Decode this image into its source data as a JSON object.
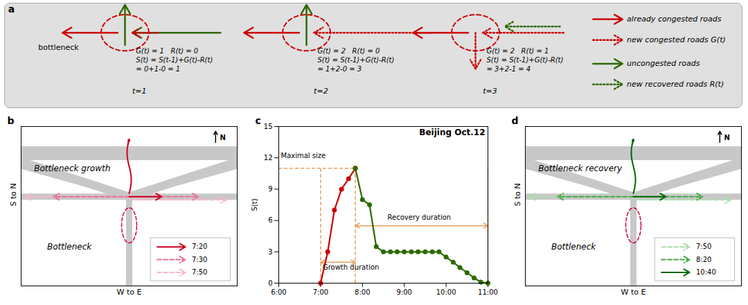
{
  "chart_data": [
    {
      "type": "diagram",
      "annotations": [
        "a",
        "bottleneck"
      ],
      "background": "#e0e0e0",
      "ellipse_color": "#cc0000",
      "steps": [
        {
          "label": "t=1",
          "text_lines": [
            "G(t) = 1   R(t) = 0",
            "S(t) = S(t-1)+G(t)-R(t)",
            "= 0+1-0 = 1"
          ]
        },
        {
          "label": "t=2",
          "text_lines": [
            "G(t) = 2   R(t) = 0",
            "S(t) = S(t-1)+G(t)-R(t)",
            "= 1+2-0 = 3"
          ]
        },
        {
          "label": "t=3",
          "text_lines": [
            "G(t) = 2   R(t) = 1",
            "S(t) = S(t-1)+G(t)-R(t)",
            "= 3+2-1 = 4"
          ]
        }
      ],
      "series": [
        {
          "name": "already congested roads",
          "color": "#cc0000",
          "line_style": "solid"
        },
        {
          "name": "new congested roads G(t)",
          "color": "#cc0000",
          "line_style": "dotted"
        },
        {
          "name": "uncongested roads",
          "color": "#2d6a00",
          "line_style": "solid"
        },
        {
          "name": "new recovered roads R(t)",
          "color": "#2d6a00",
          "line_style": "dotted"
        }
      ]
    },
    {
      "type": "diagram",
      "annotations": [
        "b",
        "Bottleneck growth",
        "Bottleneck",
        "N"
      ],
      "xlabel": "W to E",
      "ylabel": "S to N",
      "tick_labels": false,
      "road_color": "#c8c8c8",
      "ellipse_color": "#cc0033",
      "legend": "lower right",
      "series": [
        {
          "name": "7:20",
          "color": "#cc0022",
          "line_style": "solid"
        },
        {
          "name": "7:30",
          "color": "#e87090",
          "line_style": "dashed"
        },
        {
          "name": "7:50",
          "color": "#f5b8c8",
          "line_style": "dashed"
        }
      ]
    },
    {
      "type": "line",
      "title": "Beijing Oct.12",
      "ylabel": "S(t)",
      "annotations": [
        "c",
        "Growth duration",
        "Recovery duration",
        "Maximal size"
      ],
      "xlim": [
        6,
        11
      ],
      "xticks": [
        {
          "value": 6,
          "label": "6:00"
        },
        {
          "value": 7,
          "label": "7:00"
        },
        {
          "value": 8,
          "label": "8:00"
        },
        {
          "value": 9,
          "label": "9:00"
        },
        {
          "value": 10,
          "label": "10:00"
        },
        {
          "value": 11,
          "label": "11:00"
        }
      ],
      "ylim": [
        0,
        15
      ],
      "yticks": [
        0,
        3,
        6,
        9,
        12,
        15
      ],
      "grid": false,
      "series": [
        {
          "color": "#cc0000",
          "marker": "o",
          "x": [
            7.0,
            7.17,
            7.33,
            7.5,
            7.67,
            7.83
          ],
          "values": [
            0,
            3,
            7,
            9,
            10,
            11
          ]
        },
        {
          "color": "#2d6a00",
          "marker": "o",
          "x": [
            7.83,
            8.0,
            8.17,
            8.33,
            8.5,
            8.67,
            8.83,
            9.0,
            9.17,
            9.33,
            9.5,
            9.67,
            9.83,
            10.0,
            10.17,
            10.33,
            10.5,
            10.67,
            10.83,
            11.0
          ],
          "values": [
            11,
            8,
            7.5,
            3.5,
            3,
            3,
            3,
            3,
            3,
            3,
            3,
            3,
            3,
            2.5,
            2,
            1.5,
            1,
            0.5,
            0.1,
            0
          ]
        }
      ],
      "reference": {
        "peak_x": 7.83,
        "peak_y": 11,
        "growth_start_x": 7.0,
        "recovery_end_x": 11.0,
        "color": "#e8a060"
      }
    },
    {
      "type": "diagram",
      "annotations": [
        "d",
        "Bottleneck recovery",
        "Bottleneck",
        "N"
      ],
      "xlabel": "W to E",
      "ylabel": "S to N",
      "tick_labels": false,
      "road_color": "#c8c8c8",
      "ellipse_color": "#cc0033",
      "legend": "lower right",
      "series": [
        {
          "name": "7:50",
          "color": "#aaddaa",
          "line_style": "dashed"
        },
        {
          "name": "8:20",
          "color": "#44aa44",
          "line_style": "dashed"
        },
        {
          "name": "10:40",
          "color": "#006600",
          "line_style": "solid"
        }
      ]
    }
  ]
}
